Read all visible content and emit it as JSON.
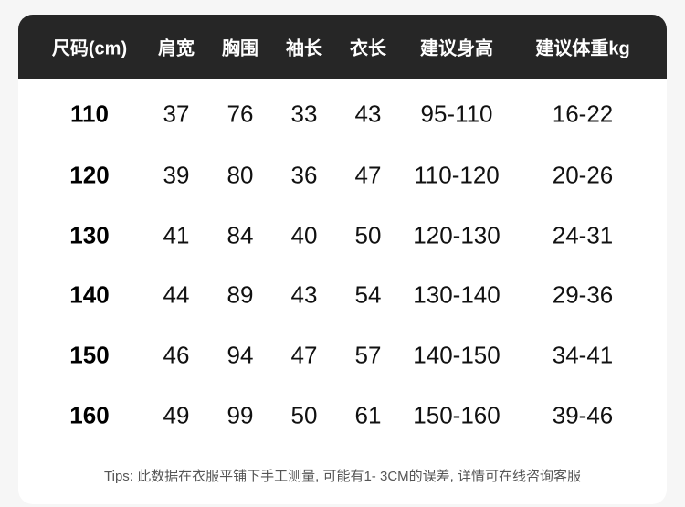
{
  "table": {
    "headers": [
      "尺码(cm)",
      "肩宽",
      "胸围",
      "袖长",
      "衣长",
      "建议身高",
      "建议体重kg"
    ],
    "rows": [
      [
        "110",
        "37",
        "76",
        "33",
        "43",
        "95-110",
        "16-22"
      ],
      [
        "120",
        "39",
        "80",
        "36",
        "47",
        "110-120",
        "20-26"
      ],
      [
        "130",
        "41",
        "84",
        "40",
        "50",
        "120-130",
        "24-31"
      ],
      [
        "140",
        "44",
        "89",
        "43",
        "54",
        "130-140",
        "29-36"
      ],
      [
        "150",
        "46",
        "94",
        "47",
        "57",
        "140-150",
        "34-41"
      ],
      [
        "160",
        "49",
        "99",
        "50",
        "61",
        "150-160",
        "39-46"
      ]
    ]
  },
  "tips": "Tips: 此数据在衣服平铺下手工测量, 可能有1- 3CM的误差, 详情可在线咨询客服",
  "colors": {
    "header_bg": "#262626",
    "header_text": "#ffffff",
    "page_bg": "#f6f6f6"
  }
}
